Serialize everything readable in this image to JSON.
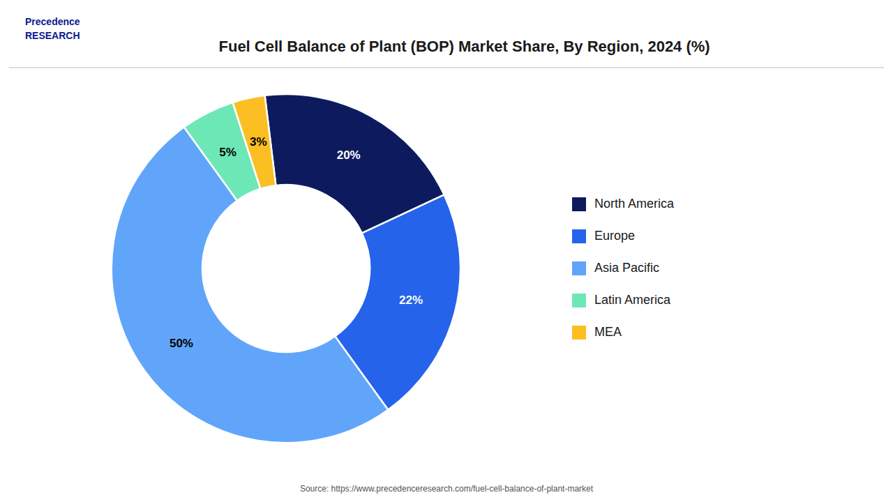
{
  "chart_data": {
    "type": "donut",
    "title": "Fuel Cell Balance of Plant (BOP) Market Share, By Region, 2024 (%)",
    "categories": [
      "North America",
      "Europe",
      "Asia Pacific",
      "Latin America",
      "MEA"
    ],
    "values": [
      20,
      22,
      50,
      5,
      3
    ],
    "value_labels": [
      "20%",
      "22%",
      "50%",
      "5%",
      "3%"
    ],
    "colors": [
      "#0d1b5e",
      "#2563eb",
      "#60a5fa",
      "#6ee7b7",
      "#fbbf24"
    ],
    "data_labels": true,
    "legend": "right",
    "annotations": [
      "Precedence",
      "RESEARCH",
      "Source: https://www.precedenceresearch.com/fuel-cell-balance-of-plant-market"
    ]
  }
}
